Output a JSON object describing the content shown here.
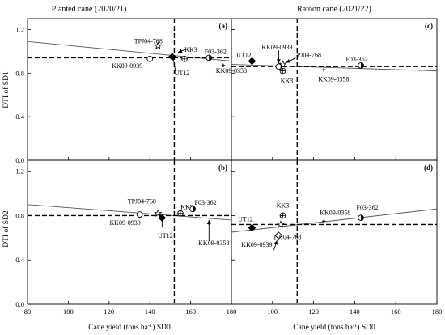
{
  "figure": {
    "column_titles": [
      "Planted cane (2020/21)",
      "Ratoon cane (2021/22)"
    ],
    "y_labels": [
      "DTI of SD1",
      "DTI of SD2"
    ],
    "x_label_parts": [
      "Cane yield (tons ha",
      "-1",
      ") SD0"
    ]
  },
  "chart_data": [
    {
      "type": "scatter",
      "panel_label": "(a)",
      "xlim": [
        80,
        180
      ],
      "ylim": [
        0,
        1.3
      ],
      "x_ticks": [
        "80",
        "100",
        "120",
        "140",
        "160",
        "180"
      ],
      "y_ticks": [
        "0.0",
        "0.4",
        "0.8",
        "1.2"
      ],
      "x_mean": 152,
      "y_mean": 0.94,
      "regression": {
        "x": [
          80,
          180
        ],
        "y": [
          1.09,
          0.91
        ]
      },
      "points": [
        {
          "label": "TPJ04-768",
          "x": 144,
          "y": 1.05,
          "marker": "star-open"
        },
        {
          "label": "KK3",
          "x": 157,
          "y": 0.93,
          "marker": "circle-cross"
        },
        {
          "label": "F03-362",
          "x": 169,
          "y": 0.94,
          "marker": "circle-half"
        },
        {
          "label": "KK09-0939",
          "x": 140,
          "y": 0.93,
          "marker": "circle-open"
        },
        {
          "label": "UT12",
          "x": 151,
          "y": 0.95,
          "marker": "diamond-filled"
        },
        {
          "label": "KK09-0358",
          "x": 176,
          "y": 0.87,
          "marker": "plus-small"
        }
      ]
    },
    {
      "type": "scatter",
      "panel_label": "(c)",
      "xlim": [
        80,
        180
      ],
      "ylim": [
        0,
        1.3
      ],
      "x_ticks": [
        "80",
        "100",
        "120",
        "140",
        "160",
        "180"
      ],
      "y_ticks": [
        "0.0",
        "0.4",
        "0.8",
        "1.2"
      ],
      "x_mean": 112,
      "y_mean": 0.86,
      "regression": {
        "x": [
          80,
          180
        ],
        "y": [
          0.88,
          0.82
        ]
      },
      "points": [
        {
          "label": "UT12",
          "x": 90,
          "y": 0.91,
          "marker": "diamond-filled"
        },
        {
          "label": "KK09-0939",
          "x": 103,
          "y": 0.86,
          "marker": "circle-open"
        },
        {
          "label": "TPJ04-768",
          "x": 105,
          "y": 0.88,
          "marker": "star-open"
        },
        {
          "label": "KK3",
          "x": 105,
          "y": 0.82,
          "marker": "circle-cross"
        },
        {
          "label": "KK09-0358",
          "x": 125,
          "y": 0.83,
          "marker": "plus-small"
        },
        {
          "label": "F03-362",
          "x": 143,
          "y": 0.87,
          "marker": "circle-half"
        }
      ]
    },
    {
      "type": "scatter",
      "panel_label": "(b)",
      "xlim": [
        80,
        180
      ],
      "ylim": [
        0,
        1.3
      ],
      "x_ticks": [
        "80",
        "100",
        "120",
        "140",
        "160",
        "180"
      ],
      "y_ticks": [
        "0.0",
        "0.4",
        "0.8",
        "1.2"
      ],
      "x_mean": 152,
      "y_mean": 0.8,
      "regression": {
        "x": [
          80,
          180
        ],
        "y": [
          0.9,
          0.76
        ]
      },
      "points": [
        {
          "label": "TPJ04-768",
          "x": 144,
          "y": 0.82,
          "marker": "star-open"
        },
        {
          "label": "KK09-0939",
          "x": 135,
          "y": 0.81,
          "marker": "circle-open"
        },
        {
          "label": "KK3",
          "x": 155,
          "y": 0.82,
          "marker": "circle-cross"
        },
        {
          "label": "F03-362",
          "x": 161,
          "y": 0.86,
          "marker": "circle-half"
        },
        {
          "label": "UT12",
          "x": 146,
          "y": 0.78,
          "marker": "diamond-filled"
        },
        {
          "label": "KK09-0358",
          "x": 169,
          "y": 0.73,
          "marker": "plus-small"
        }
      ]
    },
    {
      "type": "scatter",
      "panel_label": "(d)",
      "xlim": [
        80,
        180
      ],
      "ylim": [
        0,
        1.3
      ],
      "x_ticks": [
        "80",
        "100",
        "120",
        "140",
        "160",
        "180"
      ],
      "y_ticks": [
        "0.0",
        "0.4",
        "0.8",
        "1.2"
      ],
      "x_mean": 112,
      "y_mean": 0.72,
      "regression": {
        "x": [
          80,
          180
        ],
        "y": [
          0.65,
          0.86
        ]
      },
      "points": [
        {
          "label": "UT12",
          "x": 90,
          "y": 0.69,
          "marker": "diamond-filled"
        },
        {
          "label": "KK3",
          "x": 105,
          "y": 0.8,
          "marker": "circle-cross"
        },
        {
          "label": "KK09-0939",
          "x": 103,
          "y": 0.62,
          "marker": "diamond-open"
        },
        {
          "label": "TPJ04-768",
          "x": 104,
          "y": 0.72,
          "marker": "star-open"
        },
        {
          "label": "KK09-0358",
          "x": 125,
          "y": 0.75,
          "marker": "plus-small"
        },
        {
          "label": "F03-362",
          "x": 143,
          "y": 0.78,
          "marker": "circle-half"
        }
      ]
    }
  ]
}
